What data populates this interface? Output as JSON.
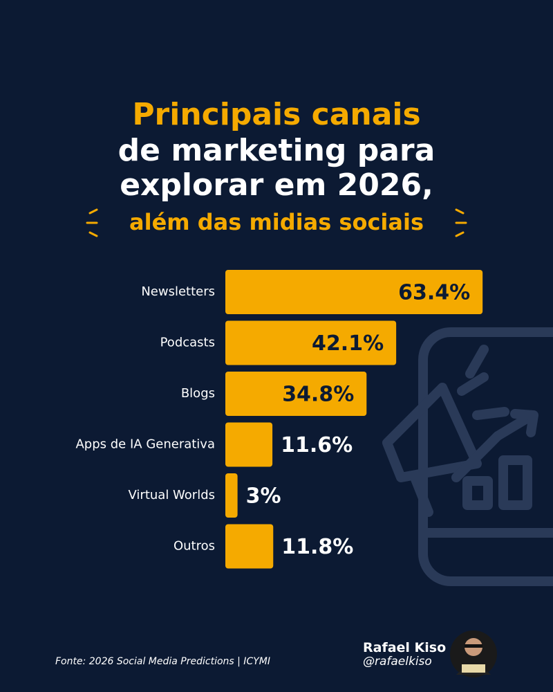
{
  "chart_data": {
    "type": "bar",
    "orientation": "horizontal",
    "title_lines": [
      "Principais canais",
      "de marketing para",
      "explorar em 2026,"
    ],
    "subtitle": "além das midias sociais",
    "categories": [
      "Newsletters",
      "Podcasts",
      "Blogs",
      "Apps de IA Generativa",
      "Virtual Worlds",
      "Outros"
    ],
    "values": [
      63.4,
      42.1,
      34.8,
      11.6,
      3,
      11.8
    ],
    "value_labels": [
      "63.4%",
      "42.1%",
      "34.8%",
      "11.6%",
      "3%",
      "11.8%"
    ],
    "color": "#f5aa00",
    "source": "Fonte: 2026 Social Media Predictions | ICYMI",
    "author": {
      "name": "Rafael Kiso",
      "handle": "@rafaelkiso"
    }
  }
}
